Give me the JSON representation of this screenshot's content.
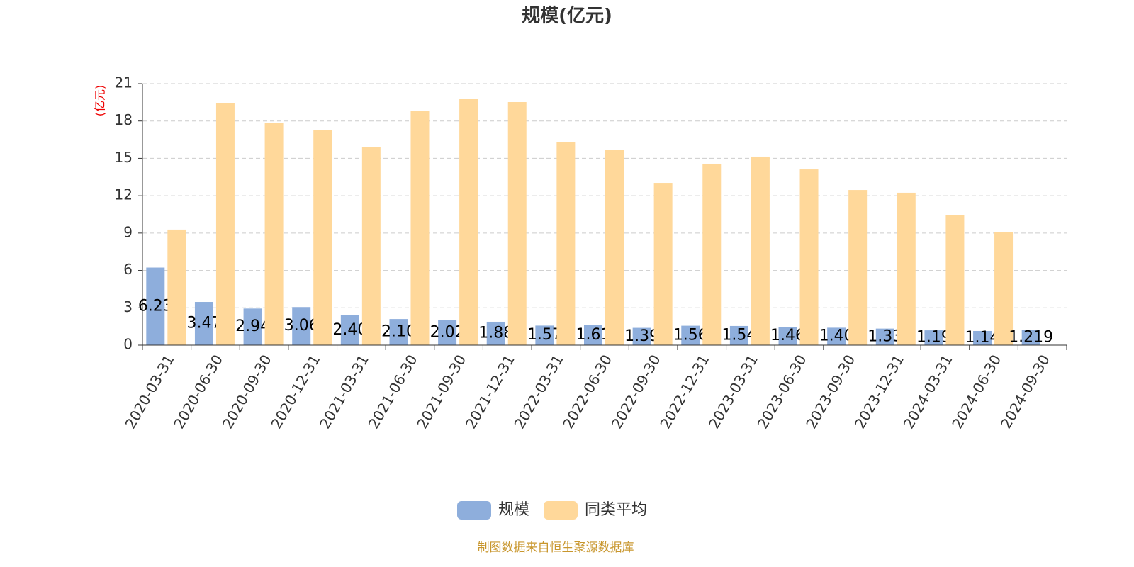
{
  "chart_data": {
    "type": "bar",
    "title": "规模(亿元)",
    "y_label": "(亿元)",
    "source": "制图数据来自恒生聚源数据库",
    "categories": [
      "2020-03-31",
      "2020-06-30",
      "2020-09-30",
      "2020-12-31",
      "2021-03-31",
      "2021-06-30",
      "2021-09-30",
      "2021-12-31",
      "2022-03-31",
      "2022-06-30",
      "2022-09-30",
      "2022-12-31",
      "2023-03-31",
      "2023-06-30",
      "2023-09-30",
      "2023-12-31",
      "2024-03-31",
      "2024-06-30",
      "2024-09-30"
    ],
    "series": [
      {
        "name": "规模",
        "color": "#8eaedc",
        "values": [
          6.23,
          3.47,
          2.94,
          3.06,
          2.4,
          2.1,
          2.02,
          1.88,
          1.57,
          1.61,
          1.39,
          1.56,
          1.54,
          1.46,
          1.4,
          1.33,
          1.19,
          1.14,
          1.219
        ],
        "value_labels": [
          "6.23",
          "3.47",
          "2.94",
          "3.06",
          "2.40",
          "2.10",
          "2.02",
          "1.88",
          "1.57",
          "1.61",
          "1.39",
          "1.56",
          "1.54",
          "1.46",
          "1.40",
          "1.33",
          "1.19",
          "1.14",
          "1.219"
        ]
      },
      {
        "name": "同类平均",
        "color": "#ffd89a",
        "values": [
          9.28,
          19.41,
          17.87,
          17.3,
          15.88,
          18.78,
          19.75,
          19.52,
          16.28,
          15.65,
          13.03,
          14.57,
          15.14,
          14.11,
          12.46,
          12.24,
          10.42,
          9.05,
          null
        ]
      }
    ],
    "ylim": [
      0,
      21
    ],
    "yticks": [
      0,
      3,
      6,
      9,
      12,
      15,
      18,
      21
    ],
    "grid": true
  }
}
